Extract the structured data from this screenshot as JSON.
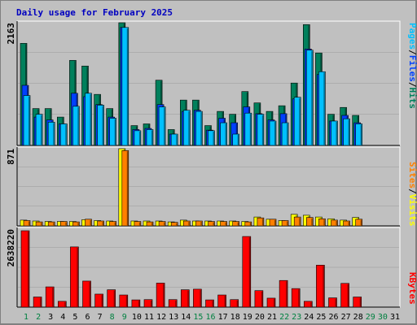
{
  "title": "Daily usage for February 2025",
  "colors": {
    "title": "#0000c0",
    "panel_bg": "#c0c0c0",
    "hits": "#00805c",
    "files": "#0040ff",
    "pages": "#00c0ff",
    "visits": "#ffff00",
    "sites": "#ff8000",
    "kbytes": "#ff0000",
    "weekday": "#000000",
    "weekend": "#008040",
    "future": "#008040"
  },
  "chart_data": [
    {
      "type": "bar",
      "name": "hits-files-pages",
      "max_label": "2163",
      "legend": [
        "Pages",
        "Files",
        "Hits"
      ],
      "ylim": [
        0,
        2163
      ],
      "series": [
        {
          "name": "Hits",
          "values": [
            1800,
            650,
            650,
            500,
            1500,
            1400,
            900,
            650,
            2163,
            350,
            380,
            1150,
            280,
            800,
            800,
            350,
            600,
            550,
            950,
            750,
            600,
            700,
            1100,
            2130,
            1630,
            550,
            670,
            530
          ]
        },
        {
          "name": "Files",
          "values": [
            1060,
            500,
            450,
            380,
            920,
            860,
            720,
            500,
            2080,
            280,
            300,
            720,
            200,
            600,
            620,
            270,
            480,
            400,
            680,
            560,
            450,
            560,
            820,
            1700,
            1250,
            430,
            530,
            400
          ]
        },
        {
          "name": "Pages",
          "values": [
            880,
            550,
            410,
            380,
            690,
            920,
            710,
            480,
            2080,
            260,
            280,
            680,
            200,
            620,
            600,
            260,
            400,
            200,
            570,
            550,
            430,
            400,
            850,
            1680,
            1300,
            430,
            470,
            380
          ]
        }
      ]
    },
    {
      "type": "bar",
      "name": "visits-sites",
      "max_label": "871",
      "legend": [
        "Sites",
        "Visits"
      ],
      "ylim": [
        0,
        871
      ],
      "series": [
        {
          "name": "Visits",
          "values": [
            65,
            55,
            50,
            50,
            50,
            70,
            60,
            55,
            871,
            55,
            55,
            55,
            45,
            65,
            55,
            55,
            55,
            55,
            50,
            100,
            75,
            60,
            130,
            120,
            100,
            80,
            65,
            95
          ]
        },
        {
          "name": "Sites",
          "values": [
            60,
            45,
            45,
            50,
            45,
            75,
            55,
            50,
            850,
            50,
            45,
            50,
            40,
            55,
            55,
            50,
            50,
            50,
            45,
            90,
            75,
            60,
            100,
            95,
            80,
            65,
            55,
            75
          ]
        }
      ]
    },
    {
      "type": "bar",
      "name": "kbytes",
      "max_label": "2638220",
      "legend": [
        "KBytes"
      ],
      "ylim": [
        0,
        2638220
      ],
      "series": [
        {
          "name": "KBytes",
          "values": [
            2638220,
            350000,
            700000,
            200000,
            2080000,
            900000,
            450000,
            600000,
            420000,
            250000,
            260000,
            830000,
            260000,
            600000,
            620000,
            250000,
            420000,
            260000,
            2440000,
            570000,
            310000,
            920000,
            640000,
            200000,
            1450000,
            320000,
            820000,
            350000
          ]
        }
      ]
    }
  ],
  "days": [
    {
      "label": "1",
      "kind": "weekend"
    },
    {
      "label": "2",
      "kind": "weekend"
    },
    {
      "label": "3",
      "kind": "weekday"
    },
    {
      "label": "4",
      "kind": "weekday"
    },
    {
      "label": "5",
      "kind": "weekday"
    },
    {
      "label": "6",
      "kind": "weekday"
    },
    {
      "label": "7",
      "kind": "weekday"
    },
    {
      "label": "8",
      "kind": "weekend"
    },
    {
      "label": "9",
      "kind": "weekend"
    },
    {
      "label": "10",
      "kind": "weekday"
    },
    {
      "label": "11",
      "kind": "weekday"
    },
    {
      "label": "12",
      "kind": "weekday"
    },
    {
      "label": "13",
      "kind": "weekday"
    },
    {
      "label": "14",
      "kind": "weekday"
    },
    {
      "label": "15",
      "kind": "weekend"
    },
    {
      "label": "16",
      "kind": "weekend"
    },
    {
      "label": "17",
      "kind": "weekday"
    },
    {
      "label": "18",
      "kind": "weekday"
    },
    {
      "label": "19",
      "kind": "weekday"
    },
    {
      "label": "20",
      "kind": "weekday"
    },
    {
      "label": "21",
      "kind": "weekday"
    },
    {
      "label": "22",
      "kind": "weekend"
    },
    {
      "label": "23",
      "kind": "weekend"
    },
    {
      "label": "24",
      "kind": "weekday"
    },
    {
      "label": "25",
      "kind": "weekday"
    },
    {
      "label": "26",
      "kind": "weekday"
    },
    {
      "label": "27",
      "kind": "weekday"
    },
    {
      "label": "28",
      "kind": "weekday"
    },
    {
      "label": "29",
      "kind": "future"
    },
    {
      "label": "30",
      "kind": "future"
    },
    {
      "label": "31",
      "kind": "weekday"
    }
  ]
}
